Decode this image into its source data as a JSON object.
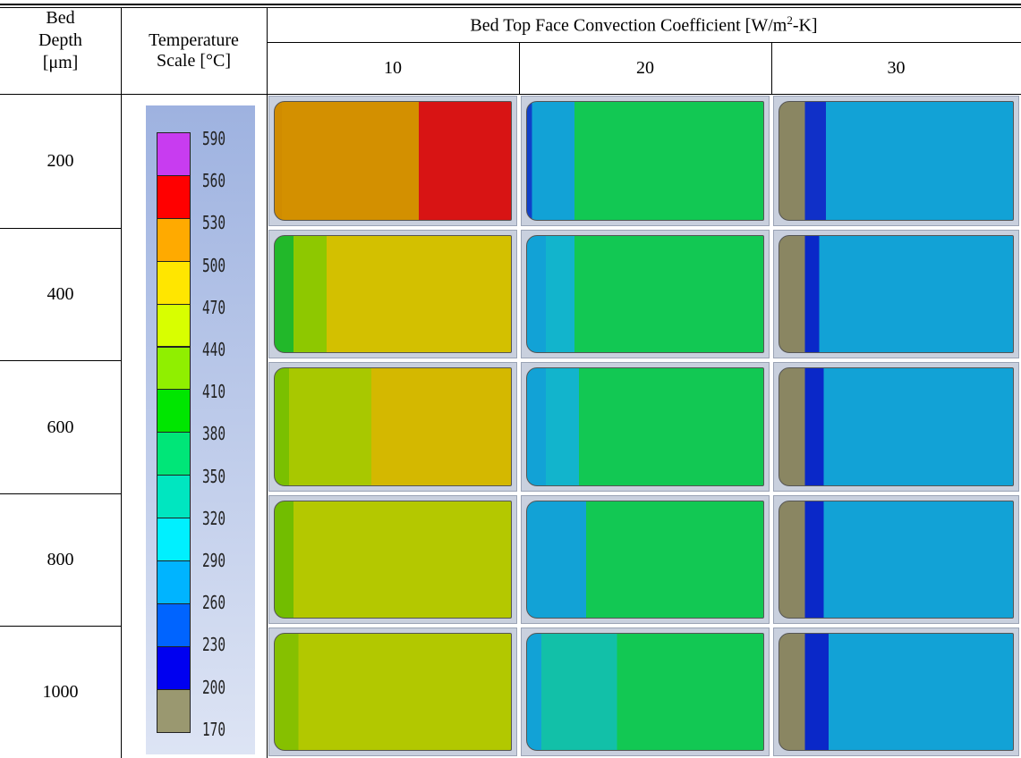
{
  "table": {
    "header": {
      "bed_depth": [
        "Bed",
        "Depth",
        "[μm]"
      ],
      "temperature_scale": [
        "Temperature",
        "Scale [°C]"
      ],
      "convection": {
        "text": "Bed Top Face Convection Coefficient [W/m",
        "superscript": "2",
        "suffix": "-K]"
      },
      "coefficients": [
        "10",
        "20",
        "30"
      ]
    },
    "rows": [
      "200",
      "400",
      "600",
      "800",
      "1000"
    ],
    "scale_labels": [
      "590",
      "560",
      "530",
      "500",
      "470",
      "440",
      "410",
      "380",
      "350",
      "320",
      "290",
      "260",
      "230",
      "200",
      "170"
    ]
  }
}
